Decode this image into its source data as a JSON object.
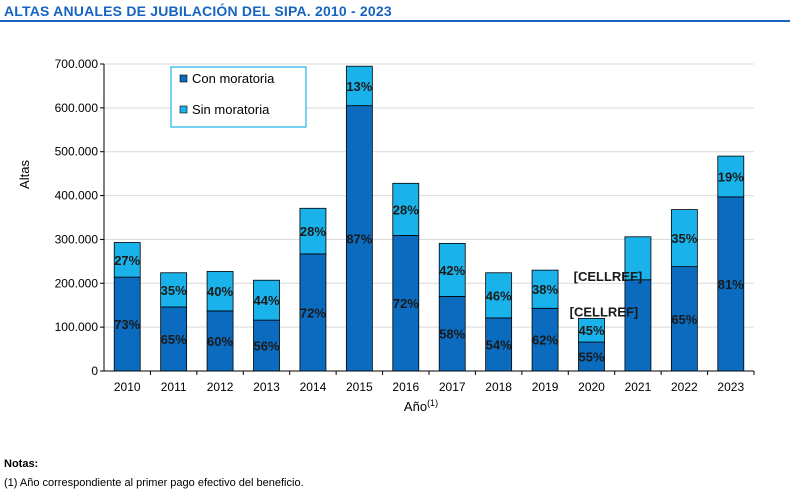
{
  "header": {
    "title": "ALTAS ANUALES DE JUBILACIÓN DEL SIPA. 2010 - 2023"
  },
  "chart_data": {
    "type": "bar",
    "stacked": true,
    "title": "ALTAS ANUALES DE JUBILACIÓN DEL SIPA. 2010 - 2023",
    "ylabel": "Altas",
    "xlabel": "Año",
    "xlabel_sup": "(1)",
    "ylim": [
      0,
      700000
    ],
    "yticks": [
      0,
      100000,
      200000,
      300000,
      400000,
      500000,
      600000,
      700000
    ],
    "ytick_labels": [
      "0",
      "100.000",
      "200.000",
      "300.000",
      "400.000",
      "500.000",
      "600.000",
      "700.000"
    ],
    "grid": true,
    "legend_position": "top-left",
    "categories": [
      "2010",
      "2011",
      "2012",
      "2013",
      "2014",
      "2015",
      "2016",
      "2017",
      "2018",
      "2019",
      "2020",
      "2021",
      "2022",
      "2023"
    ],
    "series": [
      {
        "name": "Con moratoria",
        "color": "#0b6bbf",
        "values": [
          214000,
          146000,
          137000,
          116000,
          267000,
          605000,
          309000,
          170000,
          121000,
          143000,
          66000,
          208000,
          238000,
          397000
        ],
        "labels": [
          "73%",
          "65%",
          "60%",
          "56%",
          "72%",
          "87%",
          "72%",
          "58%",
          "54%",
          "62%",
          "55%",
          "[CELLREF]",
          "65%",
          "81%"
        ]
      },
      {
        "name": "Sin moratoria",
        "color": "#1ab2ea",
        "values": [
          79000,
          78000,
          90000,
          91000,
          104000,
          90000,
          119000,
          121000,
          103000,
          87000,
          54000,
          98000,
          130000,
          93000
        ],
        "labels": [
          "27%",
          "35%",
          "40%",
          "44%",
          "28%",
          "13%",
          "28%",
          "42%",
          "46%",
          "38%",
          "45%",
          "[CELLREF]",
          "35%",
          "19%"
        ]
      }
    ]
  },
  "notes": {
    "heading": "Notas:",
    "items": [
      "(1) Año correspondiente al primer pago efectivo del beneficio."
    ]
  }
}
